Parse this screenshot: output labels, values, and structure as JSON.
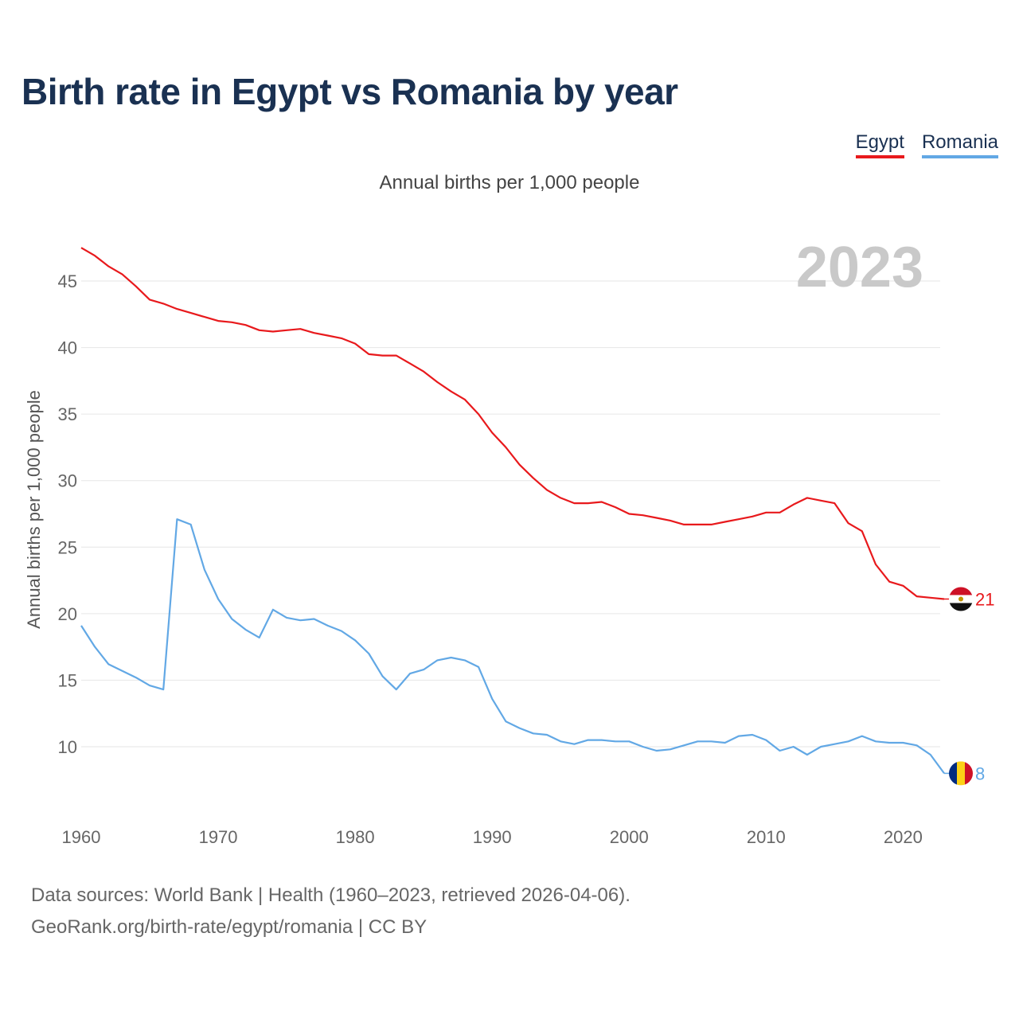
{
  "title": "Birth rate in Egypt vs Romania by year",
  "subtitle": "Annual births per 1,000 people",
  "legend": [
    {
      "label": "Egypt",
      "color": "#e8191c"
    },
    {
      "label": "Romania",
      "color": "#62a8e5"
    }
  ],
  "source": {
    "line1": "Data sources: World Bank | Health (1960–2023, retrieved 2026-04-06).",
    "line2": "GeoRank.org/birth-rate/egypt/romania | CC BY"
  },
  "chart_data": {
    "type": "line",
    "title": "Birth rate in Egypt vs Romania by year",
    "ylabel": "Annual births per 1,000 people",
    "xlabel": "",
    "year_label": "2023",
    "xlim": [
      1960,
      2023
    ],
    "ylim": [
      6,
      48
    ],
    "xticks": [
      1960,
      1970,
      1980,
      1990,
      2000,
      2010,
      2020
    ],
    "yticks": [
      10,
      15,
      20,
      25,
      30,
      35,
      40,
      45
    ],
    "grid": true,
    "legend_position": "top-right",
    "x": [
      1960,
      1961,
      1962,
      1963,
      1964,
      1965,
      1966,
      1967,
      1968,
      1969,
      1970,
      1971,
      1972,
      1973,
      1974,
      1975,
      1976,
      1977,
      1978,
      1979,
      1980,
      1981,
      1982,
      1983,
      1984,
      1985,
      1986,
      1987,
      1988,
      1989,
      1990,
      1991,
      1992,
      1993,
      1994,
      1995,
      1996,
      1997,
      1998,
      1999,
      2000,
      2001,
      2002,
      2003,
      2004,
      2005,
      2006,
      2007,
      2008,
      2009,
      2010,
      2011,
      2012,
      2013,
      2014,
      2015,
      2016,
      2017,
      2018,
      2019,
      2020,
      2021,
      2022,
      2023
    ],
    "series": [
      {
        "name": "Egypt",
        "color": "#e8191c",
        "end_label": "21",
        "values": [
          47.5,
          46.9,
          46.1,
          45.5,
          44.6,
          43.6,
          43.3,
          42.9,
          42.6,
          42.3,
          42.0,
          41.9,
          41.7,
          41.3,
          41.2,
          41.3,
          41.4,
          41.1,
          40.9,
          40.7,
          40.3,
          39.5,
          39.4,
          39.4,
          38.8,
          38.2,
          37.4,
          36.7,
          36.1,
          35.0,
          33.6,
          32.5,
          31.2,
          30.2,
          29.3,
          28.7,
          28.3,
          28.3,
          28.4,
          28.0,
          27.5,
          27.4,
          27.2,
          27.0,
          26.7,
          26.7,
          26.7,
          26.9,
          27.1,
          27.3,
          27.6,
          27.6,
          28.2,
          28.7,
          28.5,
          28.3,
          26.8,
          26.2,
          23.7,
          22.4,
          22.1,
          21.3,
          21.2,
          21.1
        ]
      },
      {
        "name": "Romania",
        "color": "#62a8e5",
        "end_label": "8",
        "values": [
          19.1,
          17.5,
          16.2,
          15.7,
          15.2,
          14.6,
          14.3,
          27.1,
          26.7,
          23.3,
          21.1,
          19.6,
          18.8,
          18.2,
          20.3,
          19.7,
          19.5,
          19.6,
          19.1,
          18.7,
          18.0,
          17.0,
          15.3,
          14.3,
          15.5,
          15.8,
          16.5,
          16.7,
          16.5,
          16.0,
          13.6,
          11.9,
          11.4,
          11.0,
          10.9,
          10.4,
          10.2,
          10.5,
          10.5,
          10.4,
          10.4,
          10.0,
          9.7,
          9.8,
          10.1,
          10.4,
          10.4,
          10.3,
          10.8,
          10.9,
          10.5,
          9.7,
          10.0,
          9.4,
          10.0,
          10.2,
          10.4,
          10.8,
          10.4,
          10.3,
          10.3,
          10.1,
          9.4,
          8.0
        ]
      }
    ]
  }
}
